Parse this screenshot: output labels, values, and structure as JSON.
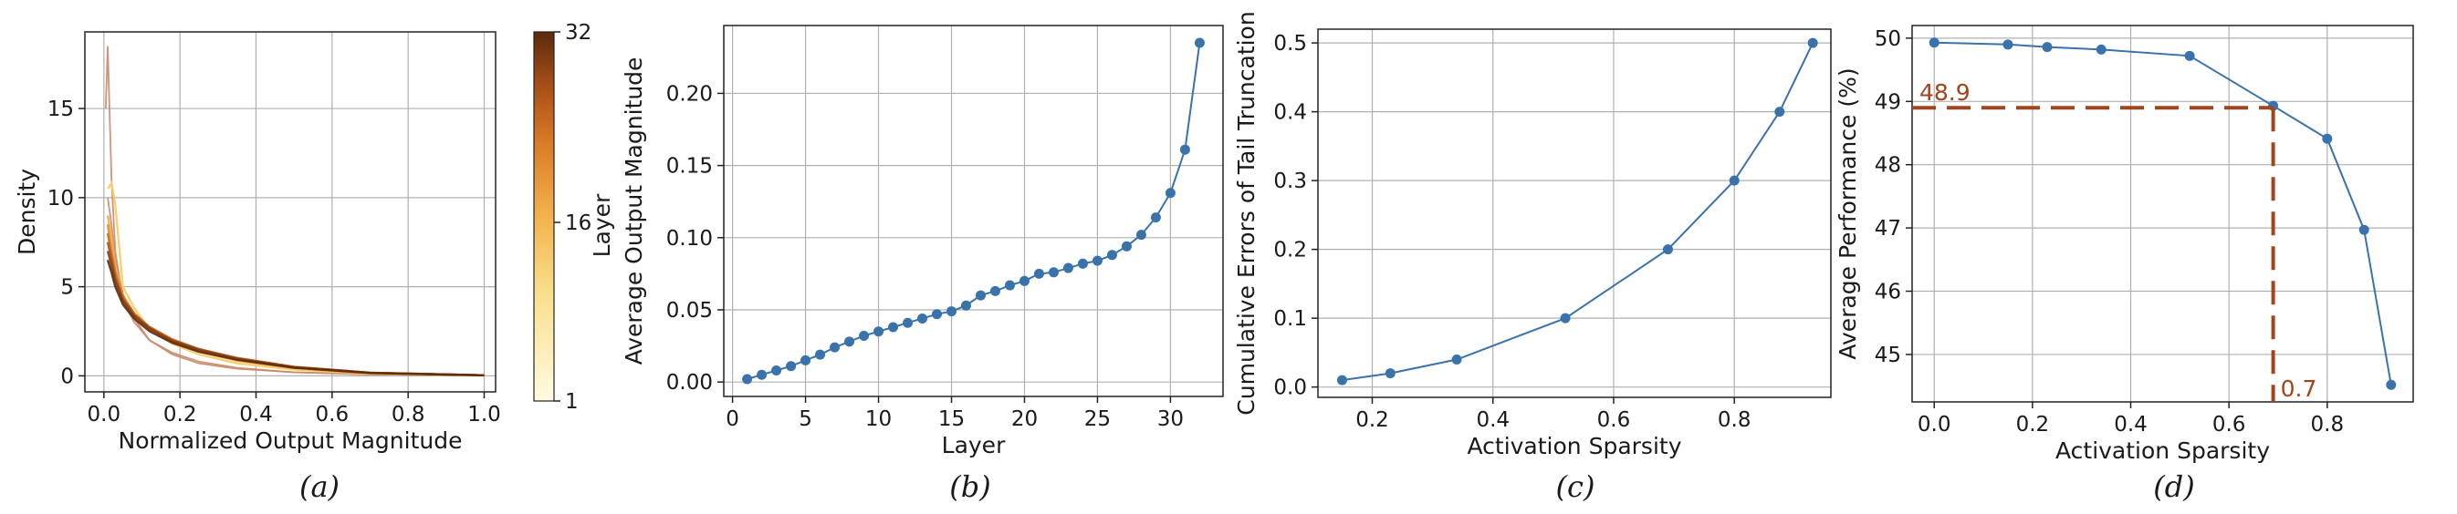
{
  "chart_data": [
    {
      "type": "line",
      "panel": "(a)",
      "xlabel": "Normalized Output Magnitude",
      "ylabel": "Density",
      "xlim": [
        -0.05,
        1.03
      ],
      "ylim": [
        -0.9,
        19.3
      ],
      "xticks": [
        0.0,
        0.2,
        0.4,
        0.6,
        0.8,
        1.0
      ],
      "yticks": [
        0,
        5,
        10,
        15
      ],
      "grid": true,
      "colorbar": {
        "label": "Layer",
        "ticks": [
          1,
          16,
          32
        ],
        "min": 1,
        "max": 32,
        "colors": [
          "#fffbe0",
          "#f6c75a",
          "#e08a2e",
          "#a8501a",
          "#5c2a0c"
        ]
      },
      "series": [
        {
          "layer": 1,
          "x": [
            0.01,
            0.02,
            0.03,
            0.05,
            0.08,
            0.12,
            0.18,
            0.25,
            0.35,
            0.5,
            0.7,
            1.0
          ],
          "y": [
            10.0,
            8.5,
            6.5,
            4.6,
            3.2,
            2.0,
            1.2,
            0.7,
            0.4,
            0.2,
            0.08,
            0.02
          ]
        },
        {
          "layer": 4,
          "x": [
            0.005,
            0.01,
            0.02,
            0.03,
            0.05,
            0.08,
            0.12,
            0.18,
            0.25,
            0.35,
            0.5,
            0.7,
            1.0
          ],
          "y": [
            15.0,
            18.5,
            11.0,
            7.0,
            4.2,
            3.0,
            2.0,
            1.3,
            0.8,
            0.45,
            0.2,
            0.08,
            0.02
          ]
        },
        {
          "layer": 8,
          "x": [
            0.01,
            0.02,
            0.03,
            0.05,
            0.08,
            0.12,
            0.18,
            0.25,
            0.35,
            0.5,
            0.7,
            1.0
          ],
          "y": [
            10.5,
            10.8,
            9.6,
            5.0,
            3.8,
            2.6,
            1.8,
            1.2,
            0.7,
            0.35,
            0.12,
            0.02
          ]
        },
        {
          "layer": 12,
          "x": [
            0.01,
            0.02,
            0.03,
            0.05,
            0.08,
            0.12,
            0.18,
            0.25,
            0.35,
            0.5,
            0.7,
            1.0
          ],
          "y": [
            9.0,
            7.8,
            6.2,
            4.4,
            3.4,
            2.6,
            1.9,
            1.35,
            0.85,
            0.42,
            0.15,
            0.03
          ]
        },
        {
          "layer": 16,
          "x": [
            0.01,
            0.02,
            0.03,
            0.05,
            0.08,
            0.12,
            0.18,
            0.25,
            0.35,
            0.5,
            0.7,
            1.0
          ],
          "y": [
            8.5,
            7.0,
            5.9,
            4.5,
            3.5,
            2.7,
            2.0,
            1.45,
            0.95,
            0.48,
            0.17,
            0.03
          ]
        },
        {
          "layer": 20,
          "x": [
            0.01,
            0.02,
            0.03,
            0.05,
            0.08,
            0.12,
            0.18,
            0.25,
            0.35,
            0.5,
            0.7,
            1.0
          ],
          "y": [
            8.0,
            6.8,
            5.7,
            4.4,
            3.5,
            2.75,
            2.05,
            1.5,
            1.0,
            0.5,
            0.18,
            0.03
          ]
        },
        {
          "layer": 24,
          "x": [
            0.01,
            0.02,
            0.03,
            0.05,
            0.08,
            0.12,
            0.18,
            0.25,
            0.35,
            0.5,
            0.7,
            1.0
          ],
          "y": [
            7.5,
            6.5,
            5.5,
            4.3,
            3.4,
            2.7,
            2.0,
            1.5,
            1.0,
            0.5,
            0.18,
            0.03
          ]
        },
        {
          "layer": 28,
          "x": [
            0.01,
            0.02,
            0.03,
            0.05,
            0.08,
            0.12,
            0.18,
            0.25,
            0.35,
            0.5,
            0.7,
            1.0
          ],
          "y": [
            7.0,
            6.2,
            5.3,
            4.2,
            3.35,
            2.65,
            1.95,
            1.45,
            0.95,
            0.48,
            0.17,
            0.03
          ]
        },
        {
          "layer": 32,
          "x": [
            0.01,
            0.02,
            0.03,
            0.05,
            0.08,
            0.12,
            0.18,
            0.25,
            0.35,
            0.5,
            0.7,
            1.0
          ],
          "y": [
            6.5,
            5.8,
            5.0,
            4.0,
            3.2,
            2.5,
            1.85,
            1.35,
            0.9,
            0.45,
            0.16,
            0.03
          ]
        }
      ]
    },
    {
      "type": "line",
      "panel": "(b)",
      "xlabel": "Layer",
      "ylabel": "Average Output Magnitude",
      "xlim": [
        -0.6,
        33.6
      ],
      "ylim": [
        -0.01,
        0.247
      ],
      "xticks": [
        0,
        5,
        10,
        15,
        20,
        25,
        30
      ],
      "yticks": [
        0.0,
        0.05,
        0.1,
        0.15,
        0.2
      ],
      "grid": true,
      "x": [
        1,
        2,
        3,
        4,
        5,
        6,
        7,
        8,
        9,
        10,
        11,
        12,
        13,
        14,
        15,
        16,
        17,
        18,
        19,
        20,
        21,
        22,
        23,
        24,
        25,
        26,
        27,
        28,
        29,
        30,
        31,
        32
      ],
      "y": [
        0.002,
        0.005,
        0.008,
        0.011,
        0.015,
        0.019,
        0.024,
        0.028,
        0.032,
        0.035,
        0.038,
        0.041,
        0.044,
        0.047,
        0.049,
        0.053,
        0.06,
        0.063,
        0.067,
        0.07,
        0.075,
        0.076,
        0.079,
        0.082,
        0.084,
        0.088,
        0.094,
        0.102,
        0.114,
        0.131,
        0.161,
        0.235
      ]
    },
    {
      "type": "line",
      "panel": "(c)",
      "xlabel": "Activation Sparsity",
      "ylabel": "Cumulative Errors of Tail Truncation",
      "xlim": [
        0.11,
        0.96
      ],
      "ylim": [
        -0.015,
        0.52
      ],
      "xticks": [
        0.2,
        0.4,
        0.6,
        0.8
      ],
      "yticks": [
        0.0,
        0.1,
        0.2,
        0.3,
        0.4,
        0.5
      ],
      "grid": true,
      "x": [
        0.15,
        0.23,
        0.34,
        0.52,
        0.69,
        0.8,
        0.875,
        0.93
      ],
      "y": [
        0.01,
        0.02,
        0.04,
        0.1,
        0.2,
        0.3,
        0.4,
        0.5
      ]
    },
    {
      "type": "line",
      "panel": "(d)",
      "xlabel": "Activation Sparsity",
      "ylabel": "Average Performance (%)",
      "xlim": [
        -0.045,
        0.975
      ],
      "ylim": [
        44.25,
        50.2
      ],
      "xticks": [
        0.0,
        0.2,
        0.4,
        0.6,
        0.8
      ],
      "yticks": [
        45,
        46,
        47,
        48,
        49,
        50
      ],
      "grid": true,
      "x": [
        0.0,
        0.15,
        0.23,
        0.34,
        0.52,
        0.69,
        0.8,
        0.875,
        0.93
      ],
      "y": [
        49.93,
        49.9,
        49.86,
        49.82,
        49.72,
        48.93,
        48.41,
        46.97,
        44.52
      ],
      "annotations": [
        {
          "label": "48.9",
          "x": 0.69,
          "y": 48.9
        },
        {
          "label": "0.7",
          "x": 0.69,
          "y": 44.25
        }
      ],
      "annotation_color": "#a0451c"
    }
  ],
  "captions": [
    "(a)",
    "(b)",
    "(c)",
    "(d)"
  ],
  "line_color": "#3a72ac"
}
